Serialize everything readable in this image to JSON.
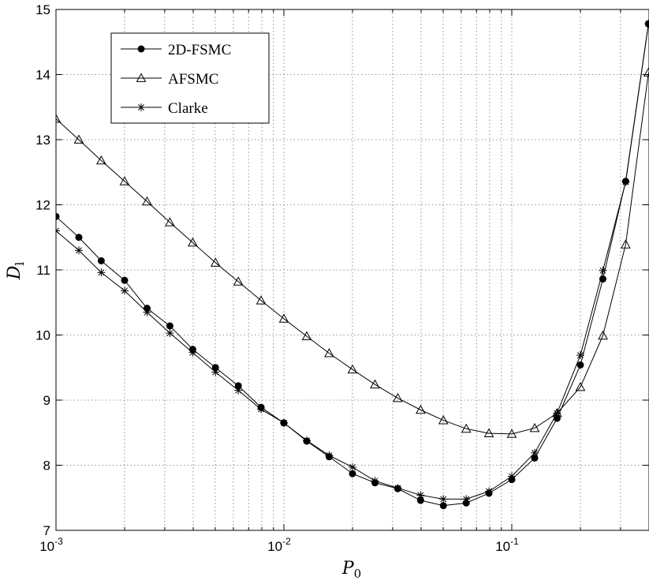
{
  "chart_data": {
    "type": "line",
    "xscale": "log",
    "xlim": [
      0.001,
      0.4
    ],
    "ylim": [
      7,
      15
    ],
    "xlabel": "P_0",
    "ylabel": "D_l",
    "xlabel_parts": {
      "main": "P",
      "sub": "0"
    },
    "ylabel_parts": {
      "main": "D",
      "sub": "l"
    },
    "grid": true,
    "legend_position": "top-left",
    "x_ticks": [
      {
        "value": 0.001,
        "base": "10",
        "exp": "-3"
      },
      {
        "value": 0.01,
        "base": "10",
        "exp": "-2"
      },
      {
        "value": 0.1,
        "base": "10",
        "exp": "-1"
      }
    ],
    "y_ticks": [
      "7",
      "8",
      "9",
      "10",
      "11",
      "12",
      "13",
      "14",
      "15"
    ],
    "series": [
      {
        "name": "2D-FSMC",
        "marker": "dot",
        "x": [
          0.001,
          0.00126,
          0.00158,
          0.002,
          0.00251,
          0.00316,
          0.00398,
          0.00501,
          0.00631,
          0.00794,
          0.01,
          0.0126,
          0.0158,
          0.02,
          0.0251,
          0.0316,
          0.0398,
          0.0501,
          0.0631,
          0.0794,
          0.1,
          0.126,
          0.158,
          0.2,
          0.251,
          0.316,
          0.398
        ],
        "y": [
          11.82,
          11.5,
          11.14,
          10.84,
          10.41,
          10.14,
          9.78,
          9.5,
          9.22,
          8.89,
          8.65,
          8.37,
          8.13,
          7.87,
          7.73,
          7.64,
          7.46,
          7.38,
          7.42,
          7.57,
          7.78,
          8.11,
          8.72,
          9.54,
          10.86,
          12.36,
          14.78
        ]
      },
      {
        "name": "AFSMC",
        "marker": "triangle",
        "x": [
          0.001,
          0.00126,
          0.00158,
          0.002,
          0.00251,
          0.00316,
          0.00398,
          0.00501,
          0.00631,
          0.00794,
          0.01,
          0.0126,
          0.0158,
          0.02,
          0.0251,
          0.0316,
          0.0398,
          0.0501,
          0.0631,
          0.0794,
          0.1,
          0.126,
          0.158,
          0.2,
          0.251,
          0.316,
          0.398
        ],
        "y": [
          13.32,
          13.0,
          12.68,
          12.36,
          12.05,
          11.73,
          11.42,
          11.11,
          10.82,
          10.53,
          10.25,
          9.98,
          9.72,
          9.47,
          9.24,
          9.03,
          8.85,
          8.69,
          8.56,
          8.49,
          8.48,
          8.57,
          8.8,
          9.2,
          9.99,
          11.39,
          14.03
        ]
      },
      {
        "name": "Clarke",
        "marker": "star",
        "x": [
          0.001,
          0.00126,
          0.00158,
          0.002,
          0.00251,
          0.00316,
          0.00398,
          0.00501,
          0.00631,
          0.00794,
          0.01,
          0.0126,
          0.0158,
          0.02,
          0.0251,
          0.0316,
          0.0398,
          0.0501,
          0.0631,
          0.0794,
          0.1,
          0.126,
          0.158,
          0.2,
          0.251,
          0.316,
          0.398
        ],
        "y": [
          11.6,
          11.3,
          10.96,
          10.68,
          10.35,
          10.03,
          9.73,
          9.43,
          9.15,
          8.86,
          8.65,
          8.38,
          8.15,
          7.97,
          7.76,
          7.65,
          7.54,
          7.48,
          7.48,
          7.6,
          7.83,
          8.19,
          8.8,
          9.69,
          10.99,
          12.35,
          14.78
        ]
      }
    ]
  }
}
